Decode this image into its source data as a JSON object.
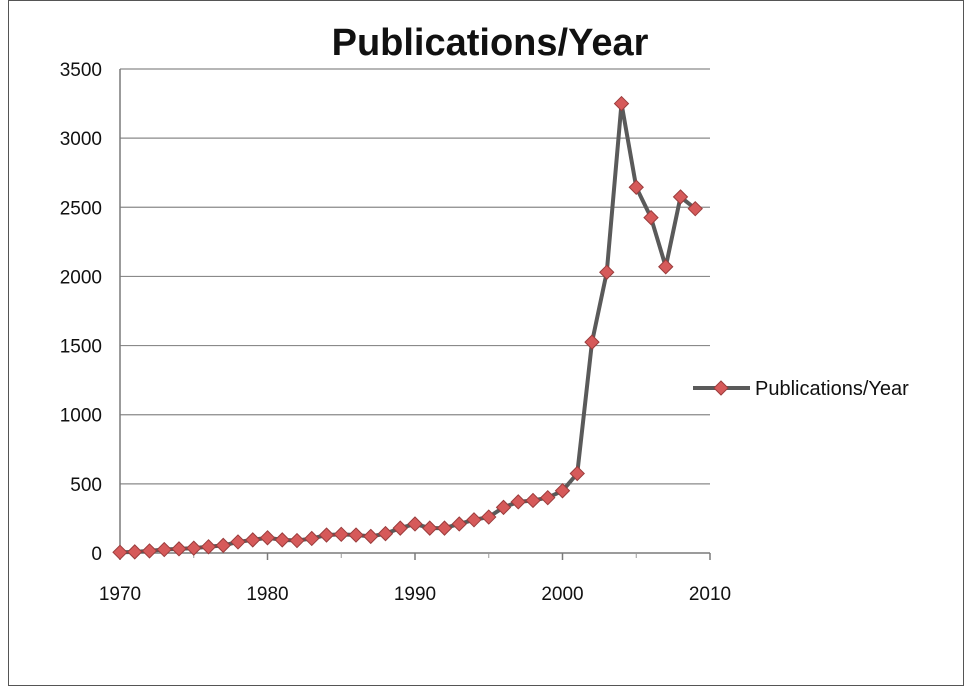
{
  "chart_data": {
    "type": "line",
    "title": "Publications/Year",
    "xlabel": "",
    "ylabel": "",
    "xlim": [
      1970,
      2010
    ],
    "ylim": [
      0,
      3500
    ],
    "x_ticks": [
      1970,
      1980,
      1990,
      2000,
      2010
    ],
    "y_ticks": [
      0,
      500,
      1000,
      1500,
      2000,
      2500,
      3000,
      3500
    ],
    "grid": "horizontal",
    "legend_position": "right",
    "series": [
      {
        "name": "Publications/Year",
        "color": "#D65A5A",
        "line_color": "#5A5A5A",
        "marker": "diamond",
        "x": [
          1970,
          1971,
          1972,
          1973,
          1974,
          1975,
          1976,
          1977,
          1978,
          1979,
          1980,
          1981,
          1982,
          1983,
          1984,
          1985,
          1986,
          1987,
          1988,
          1989,
          1990,
          1991,
          1992,
          1993,
          1994,
          1995,
          1996,
          1997,
          1998,
          1999,
          2000,
          2001,
          2002,
          2003,
          2004,
          2005,
          2006,
          2007,
          2008,
          2009
        ],
        "y": [
          5,
          8,
          15,
          25,
          30,
          35,
          45,
          55,
          80,
          95,
          110,
          95,
          90,
          105,
          130,
          135,
          130,
          120,
          140,
          180,
          210,
          180,
          180,
          210,
          240,
          260,
          330,
          370,
          380,
          400,
          450,
          575,
          1525,
          2030,
          3250,
          2645,
          2425,
          2070,
          2575,
          2490
        ]
      }
    ]
  }
}
